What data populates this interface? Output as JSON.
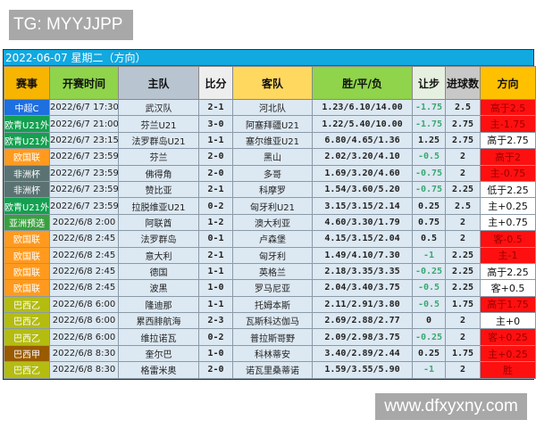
{
  "watermark_top": "TG: MYYJJPP",
  "watermark_bottom": "www.dfxyxny.com",
  "title": "2022-06-07 星期二（方向）",
  "headers": [
    {
      "label": "赛事",
      "color": "#f7b500"
    },
    {
      "label": "开赛时间",
      "color": "#8fd44a"
    },
    {
      "label": "主队",
      "color": "#b8c4d0"
    },
    {
      "label": "比分",
      "color": "#eeeeee"
    },
    {
      "label": "客队",
      "color": "#ffd860"
    },
    {
      "label": "胜/平/负",
      "color": "#8fd44a"
    },
    {
      "label": "让步",
      "color": "#e6f0e0"
    },
    {
      "label": "进球数",
      "color": "#c8c8c8"
    },
    {
      "label": "方向",
      "color": "#ffc000"
    }
  ],
  "league_colors": {
    "中超C": "#1e6fe0",
    "欧青U21外": "#14a050",
    "欧国联": "#ff9a1e",
    "非洲杯": "#5a7272",
    "亚洲预选": "#3aa040",
    "巴西乙": "#b4bc10",
    "巴西甲": "#9a5a00"
  },
  "rows": [
    {
      "league": "中超C",
      "time": "2022/6/7 17:30",
      "home": "武汉队",
      "score": "2-1",
      "away": "河北队",
      "odds": "1.23/6.10/14.00",
      "handicap": "-1.75",
      "goals": "2.5",
      "direction": "高于2.5",
      "highlight": true
    },
    {
      "league": "欧青U21外",
      "time": "2022/6/7 21:00",
      "home": "芬兰U21",
      "score": "3-0",
      "away": "阿塞拜疆U21",
      "odds": "1.22/5.40/10.00",
      "handicap": "-1.75",
      "goals": "2.75",
      "direction": "主-1.75",
      "highlight": true
    },
    {
      "league": "欧青U21外",
      "time": "2022/6/7 23:15",
      "home": "法罗群岛U21",
      "score": "1-1",
      "away": "塞尔维亚U21",
      "odds": "6.80/4.65/1.36",
      "handicap": "1.25",
      "goals": "2.75",
      "direction": "高于2.75",
      "highlight": false
    },
    {
      "league": "欧国联",
      "time": "2022/6/7 23:59",
      "home": "芬兰",
      "score": "2-0",
      "away": "黑山",
      "odds": "2.02/3.20/4.10",
      "handicap": "-0.5",
      "goals": "2",
      "direction": "高于2",
      "highlight": true
    },
    {
      "league": "非洲杯",
      "time": "2022/6/7 23:59",
      "home": "佛得角",
      "score": "2-0",
      "away": "多哥",
      "odds": "1.69/3.20/4.60",
      "handicap": "-0.75",
      "goals": "2",
      "direction": "主-0.75",
      "highlight": true
    },
    {
      "league": "非洲杯",
      "time": "2022/6/7 23:59",
      "home": "赞比亚",
      "score": "2-1",
      "away": "科摩罗",
      "odds": "1.54/3.60/5.20",
      "handicap": "-0.75",
      "goals": "2.25",
      "direction": "低于2.25",
      "highlight": false
    },
    {
      "league": "欧青U21外",
      "time": "2022/6/7 23:59",
      "home": "拉脱维亚U21",
      "score": "0-2",
      "away": "匈牙利U21",
      "odds": "3.15/3.15/2.14",
      "handicap": "0.25",
      "goals": "2.5",
      "direction": "主+0.25",
      "highlight": false
    },
    {
      "league": "亚洲预选",
      "time": "2022/6/8 2:00",
      "home": "阿联酋",
      "score": "1-2",
      "away": "澳大利亚",
      "odds": "4.60/3.30/1.79",
      "handicap": "0.75",
      "goals": "2",
      "direction": "主+0.75",
      "highlight": false
    },
    {
      "league": "欧国联",
      "time": "2022/6/8 2:45",
      "home": "法罗群岛",
      "score": "0-1",
      "away": "卢森堡",
      "odds": "4.15/3.15/2.04",
      "handicap": "0.5",
      "goals": "2",
      "direction": "客-0.5",
      "highlight": true
    },
    {
      "league": "欧国联",
      "time": "2022/6/8 2:45",
      "home": "意大利",
      "score": "2-1",
      "away": "匈牙利",
      "odds": "1.49/4.10/7.30",
      "handicap": "-1",
      "goals": "2.25",
      "direction": "主-1",
      "highlight": true
    },
    {
      "league": "欧国联",
      "time": "2022/6/8 2:45",
      "home": "德国",
      "score": "1-1",
      "away": "英格兰",
      "odds": "2.18/3.35/3.35",
      "handicap": "-0.25",
      "goals": "2.25",
      "direction": "高于2.25",
      "highlight": false
    },
    {
      "league": "欧国联",
      "time": "2022/6/8 2:45",
      "home": "波黑",
      "score": "1-0",
      "away": "罗马尼亚",
      "odds": "2.04/3.40/3.75",
      "handicap": "-0.5",
      "goals": "2.25",
      "direction": "客+0.5",
      "highlight": false
    },
    {
      "league": "巴西乙",
      "time": "2022/6/8 6:00",
      "home": "隆迪那",
      "score": "1-1",
      "away": "托姆本斯",
      "odds": "2.11/2.91/3.80",
      "handicap": "-0.5",
      "goals": "1.75",
      "direction": "高于1.75",
      "highlight": true
    },
    {
      "league": "巴西乙",
      "time": "2022/6/8 6:00",
      "home": "累西腓航海",
      "score": "2-3",
      "away": "瓦斯科达伽马",
      "odds": "2.69/2.88/2.77",
      "handicap": "0",
      "goals": "2",
      "direction": "主+0",
      "highlight": false
    },
    {
      "league": "巴西乙",
      "time": "2022/6/8 6:00",
      "home": "维拉诺瓦",
      "score": "0-2",
      "away": "普拉斯哥野",
      "odds": "2.09/2.98/3.75",
      "handicap": "-0.25",
      "goals": "2",
      "direction": "客+0.25",
      "highlight": true
    },
    {
      "league": "巴西甲",
      "time": "2022/6/8 8:30",
      "home": "奎尔巴",
      "score": "1-0",
      "away": "科林蒂安",
      "odds": "3.40/2.89/2.44",
      "handicap": "0.25",
      "goals": "1.75",
      "direction": "主+0.25",
      "highlight": true
    },
    {
      "league": "巴西乙",
      "time": "2022/6/8 8:30",
      "home": "格雷米奥",
      "score": "2-0",
      "away": "诺瓦里桑蒂诺",
      "odds": "1.59/3.55/5.90",
      "handicap": "-1",
      "goals": "2",
      "direction": "胜",
      "highlight": true
    }
  ]
}
